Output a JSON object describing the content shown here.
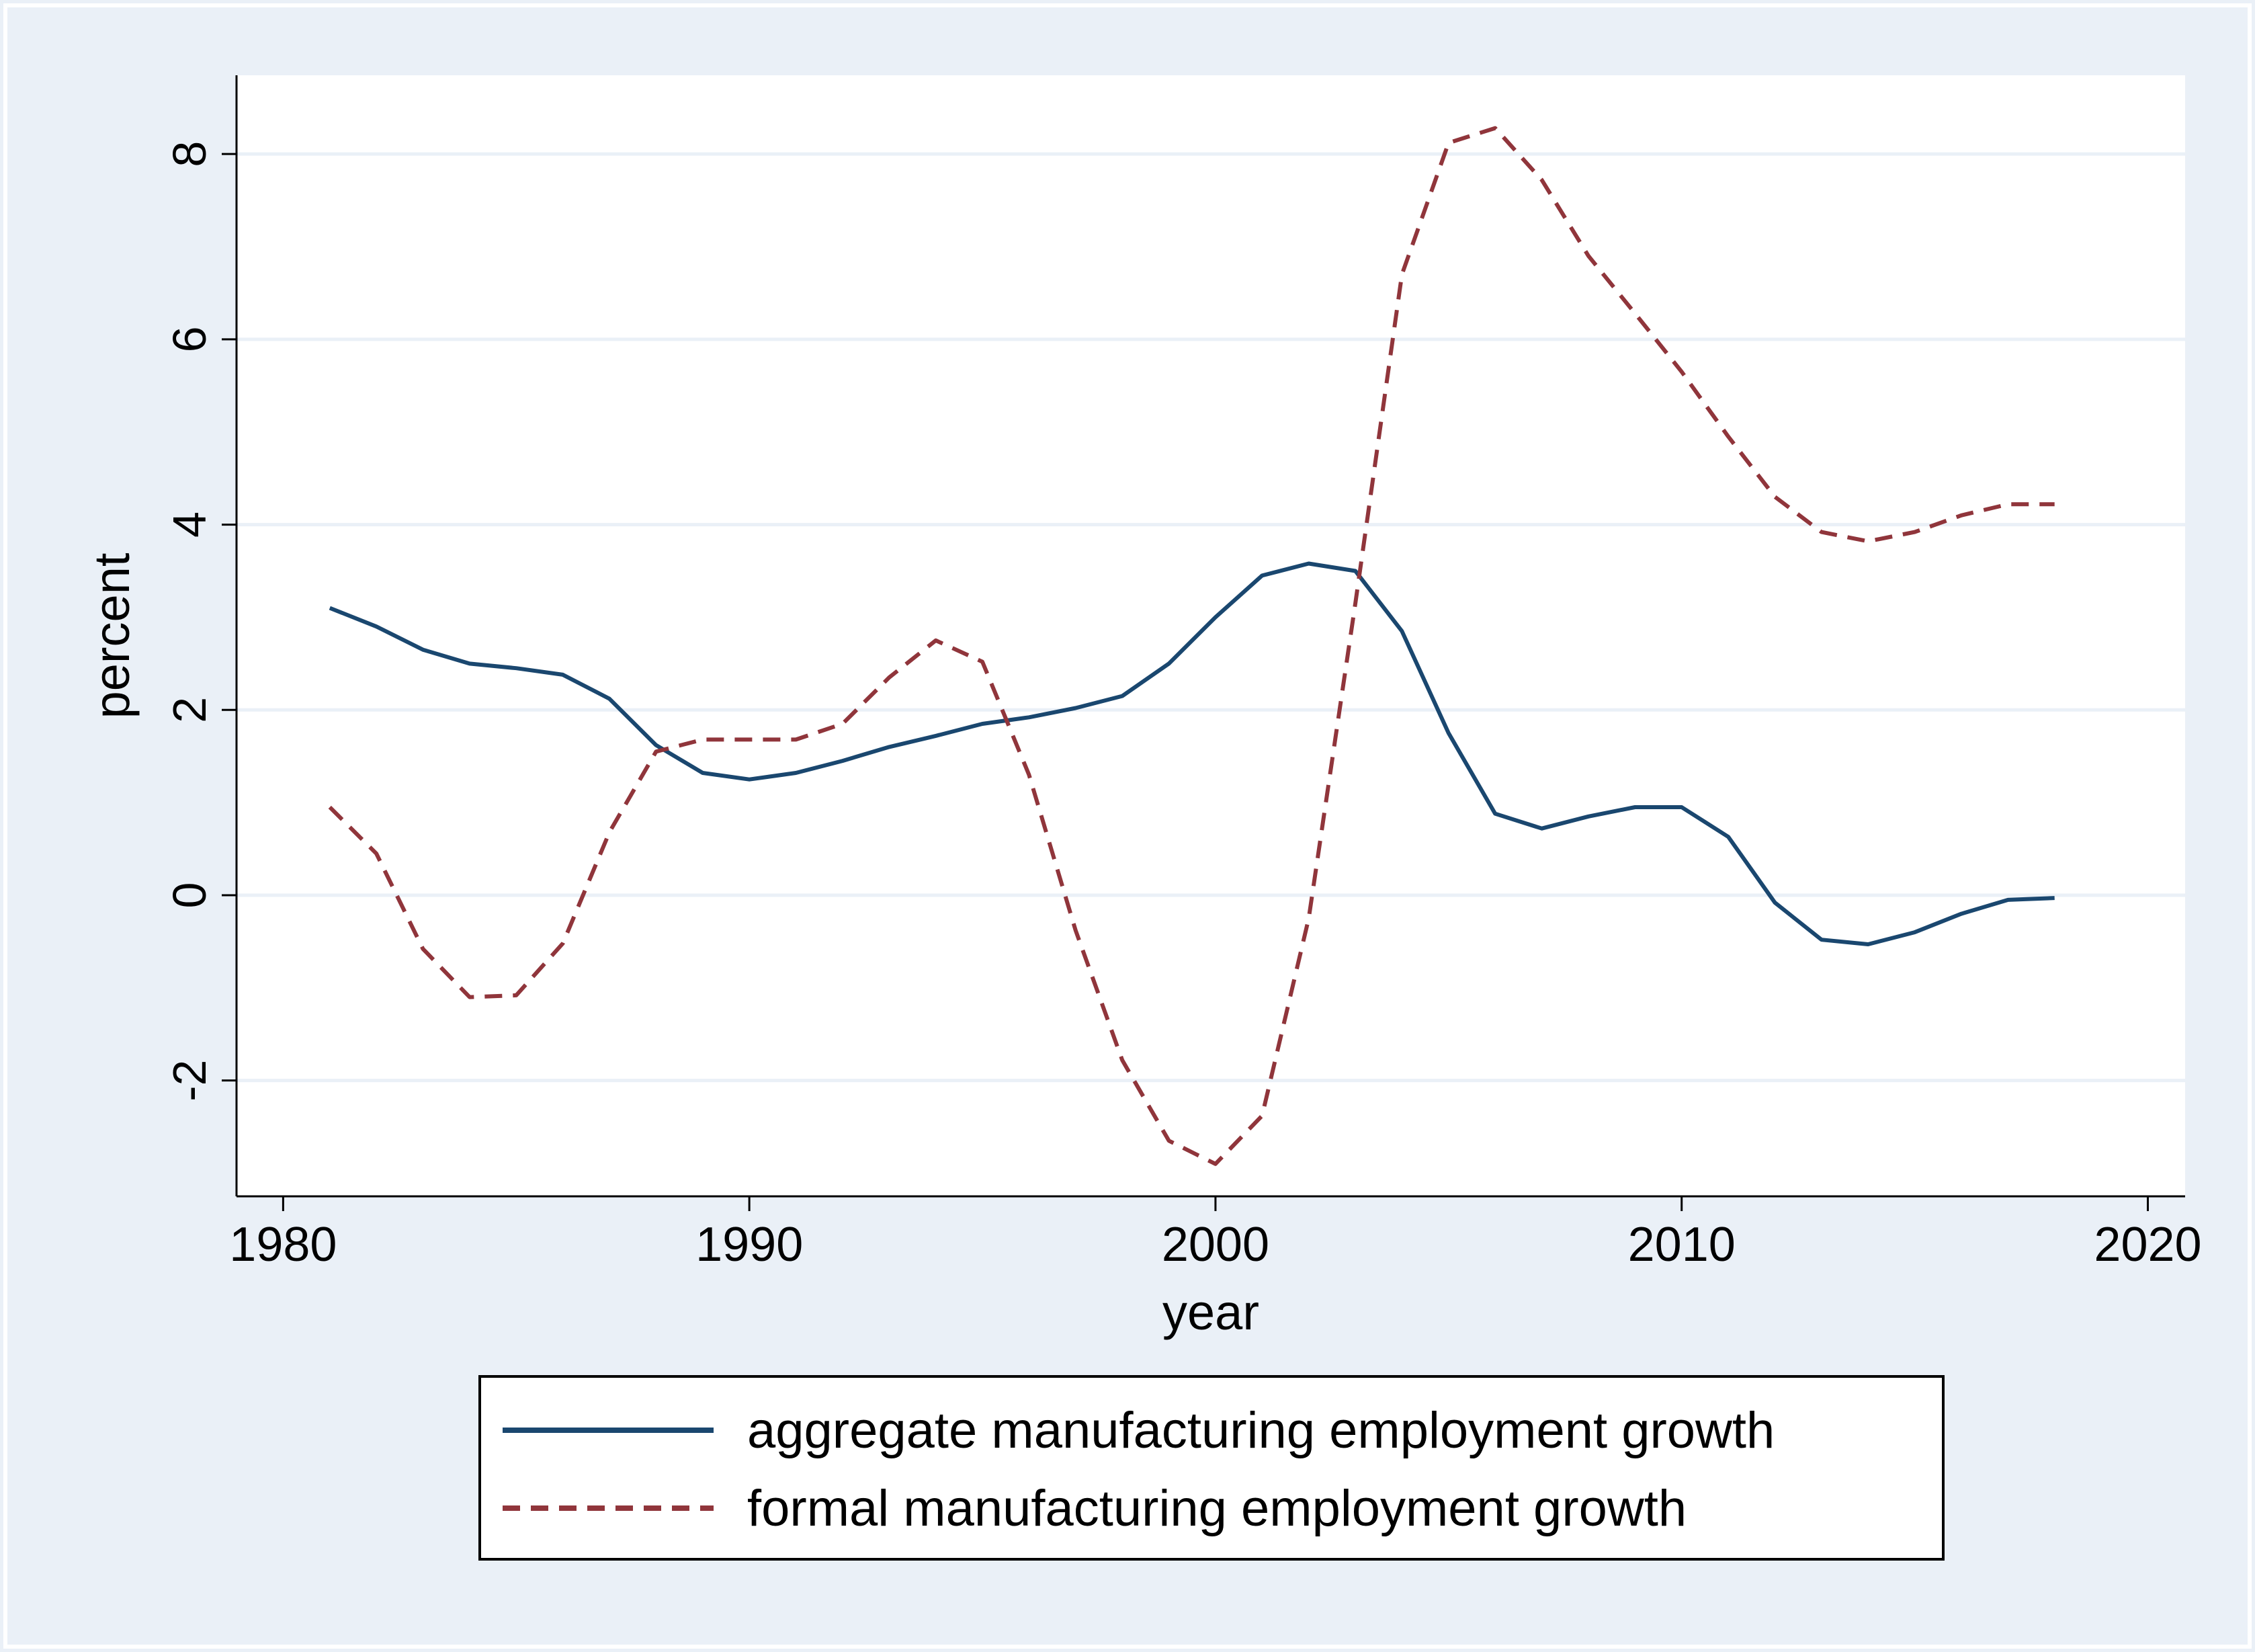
{
  "chart_data": {
    "type": "line",
    "title": "",
    "xlabel": "year",
    "ylabel": "percent",
    "xlim": [
      1979,
      2020.8
    ],
    "ylim": [
      -3.25,
      8.85
    ],
    "xticks": [
      1980,
      1990,
      2000,
      2010,
      2020
    ],
    "yticks": [
      -2,
      0,
      2,
      4,
      6,
      8
    ],
    "grid": true,
    "legend_position": "bottom",
    "colors": {
      "outer_background": "#eaf0f7",
      "plot_background": "#ffffff",
      "gridline": "#eaf0f7",
      "axis": "#000000"
    },
    "series": [
      {
        "name": "aggregate manufacturing employment growth",
        "color": "#1a476f",
        "dash": "solid",
        "x": [
          1981,
          1982,
          1983,
          1984,
          1985,
          1986,
          1987,
          1988,
          1989,
          1990,
          1991,
          1992,
          1993,
          1994,
          1995,
          1996,
          1997,
          1998,
          1999,
          2000,
          2001,
          2002,
          2003,
          2004,
          2005,
          2006,
          2007,
          2008,
          2009,
          2010,
          2011,
          2012,
          2013,
          2014,
          2015,
          2016,
          2017,
          2018
        ],
        "values": [
          3.1,
          2.9,
          2.65,
          2.5,
          2.45,
          2.38,
          2.12,
          1.62,
          1.32,
          1.25,
          1.32,
          1.45,
          1.6,
          1.72,
          1.85,
          1.92,
          2.02,
          2.15,
          2.5,
          3.0,
          3.45,
          3.58,
          3.5,
          2.85,
          1.75,
          0.88,
          0.72,
          0.85,
          0.95,
          0.95,
          0.63,
          -0.08,
          -0.48,
          -0.53,
          -0.4,
          -0.2,
          -0.05,
          -0.03
        ]
      },
      {
        "name": "formal manufacturing employment growth",
        "color": "#90353b",
        "dash": "dashed",
        "x": [
          1981,
          1982,
          1983,
          1984,
          1985,
          1986,
          1987,
          1988,
          1989,
          1990,
          1991,
          1992,
          1993,
          1994,
          1995,
          1996,
          1997,
          1998,
          1999,
          2000,
          2001,
          2002,
          2003,
          2004,
          2005,
          2006,
          2007,
          2008,
          2009,
          2010,
          2011,
          2012,
          2013,
          2014,
          2015,
          2016,
          2017,
          2018
        ],
        "values": [
          0.95,
          0.45,
          -0.58,
          -1.1,
          -1.08,
          -0.52,
          0.68,
          1.55,
          1.68,
          1.68,
          1.68,
          1.85,
          2.35,
          2.75,
          2.52,
          1.3,
          -0.38,
          -1.78,
          -2.65,
          -2.9,
          -2.38,
          -0.25,
          3.15,
          6.7,
          8.12,
          8.28,
          7.72,
          6.9,
          6.28,
          5.65,
          4.95,
          4.3,
          3.92,
          3.82,
          3.92,
          4.1,
          4.22,
          4.22
        ]
      }
    ]
  }
}
